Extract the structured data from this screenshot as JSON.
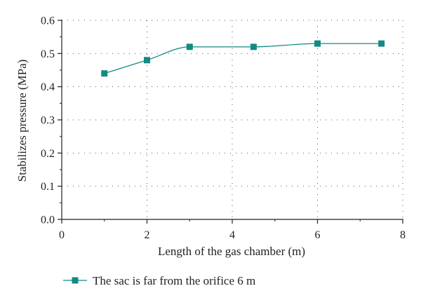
{
  "chart_data": {
    "type": "line",
    "title": "",
    "xlabel": "Length of the gas chamber (m)",
    "ylabel": "Stabilizes pressure (MPa)",
    "xlim": [
      0,
      8
    ],
    "ylim": [
      0.0,
      0.6
    ],
    "x_ticks": [
      "0",
      "2",
      "4",
      "6",
      "8"
    ],
    "y_ticks": [
      "0.0",
      "0.1",
      "0.2",
      "0.3",
      "0.4",
      "0.5",
      "0.6"
    ],
    "grid": true,
    "smooth": true,
    "legend_position": "bottom-left",
    "series": [
      {
        "name": "The sac is far from the orifice 6 m",
        "color": "#138A85",
        "marker": "square",
        "x": [
          1,
          2,
          3,
          4.5,
          6,
          7.5
        ],
        "y": [
          0.44,
          0.48,
          0.52,
          0.52,
          0.53,
          0.53
        ]
      }
    ]
  }
}
